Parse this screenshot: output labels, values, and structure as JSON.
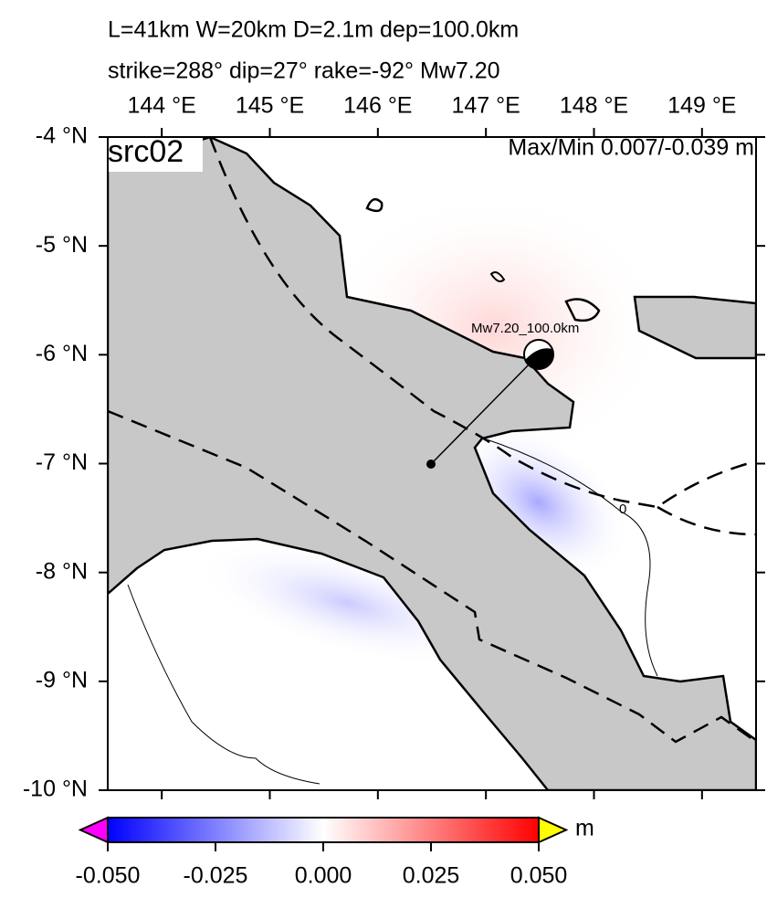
{
  "title_lines": [
    "L=41km W=20km D=2.1m dep=100.0km",
    "strike=288° dip=27° rake=-92° Mw7.20"
  ],
  "map": {
    "label": "src02",
    "max_min": "Max/Min 0.007/-0.039 m",
    "event_label": "Mw7.20_100.0km",
    "contour_label": "0",
    "xlim": [
      143.5,
      149.5
    ],
    "ylim": [
      -10,
      -4
    ],
    "xticks": [
      {
        "value": 144,
        "label": "144 °E"
      },
      {
        "value": 145,
        "label": "145 °E"
      },
      {
        "value": 146,
        "label": "146 °E"
      },
      {
        "value": 147,
        "label": "147 °E"
      },
      {
        "value": 148,
        "label": "148 °E"
      },
      {
        "value": 149,
        "label": "149 °E"
      }
    ],
    "yticks": [
      {
        "value": -4,
        "label": "-4 °N"
      },
      {
        "value": -5,
        "label": "-5 °N"
      },
      {
        "value": -6,
        "label": "-6 °N"
      },
      {
        "value": -7,
        "label": "-7 °N"
      },
      {
        "value": -8,
        "label": "-8 °N"
      },
      {
        "value": -9,
        "label": "-9 °N"
      },
      {
        "value": -10,
        "label": "-10 °N"
      }
    ]
  },
  "colorbar": {
    "lim": [
      -0.05,
      0.05
    ],
    "ticks": [
      {
        "value": -0.05,
        "label": "-0.050"
      },
      {
        "value": -0.025,
        "label": "-0.025"
      },
      {
        "value": 0,
        "label": "0.000"
      },
      {
        "value": 0.025,
        "label": "0.025"
      },
      {
        "value": 0.05,
        "label": "0.050"
      }
    ],
    "unit": "m"
  }
}
